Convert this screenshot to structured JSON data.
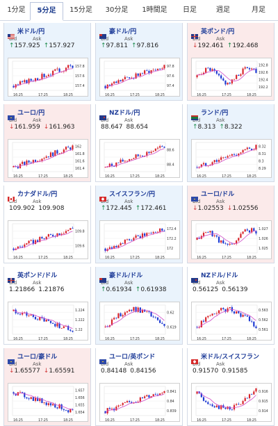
{
  "tabs": [
    {
      "label": "1分足",
      "active": false
    },
    {
      "label": "5分足",
      "active": true
    },
    {
      "label": "15分足",
      "active": false
    },
    {
      "label": "30分足",
      "active": false
    },
    {
      "label": "1時間足",
      "active": false
    },
    {
      "label": "日足",
      "active": false
    },
    {
      "label": "週足",
      "active": false
    },
    {
      "label": "月足",
      "active": false
    }
  ],
  "bid_label": "Bid",
  "ask_label": "Ask",
  "x_ticks": [
    "16:25",
    "17:25",
    "18:25"
  ],
  "colors": {
    "up_bg": "#eaf3fc",
    "down_bg": "#fbeaea",
    "bull": "#d8252c",
    "bear": "#1f3bd3",
    "ma": "#d04bc7"
  },
  "pairs": [
    {
      "name": "米ドル/円",
      "flag": "us",
      "trend": "up",
      "bid": "157.925",
      "ask": "157.927",
      "bid_dir": "up",
      "ask_dir": "up",
      "y_ticks": [
        "157.8",
        "157.6",
        "157.4"
      ],
      "shape": "up"
    },
    {
      "name": "豪ドル/円",
      "flag": "au",
      "trend": "up",
      "bid": "97.811",
      "ask": "97.816",
      "bid_dir": "up",
      "ask_dir": "up",
      "y_ticks": [
        "97.8",
        "97.6",
        "97.4"
      ],
      "shape": "up"
    },
    {
      "name": "英ポンド/円",
      "flag": "uk",
      "trend": "down",
      "bid": "192.461",
      "ask": "192.468",
      "bid_dir": "down",
      "ask_dir": "up",
      "y_ticks": [
        "192.8",
        "192.6",
        "192.4",
        "192.2"
      ],
      "shape": "wave"
    },
    {
      "name": "ユーロ/円",
      "flag": "eu",
      "trend": "down",
      "bid": "161.959",
      "ask": "161.963",
      "bid_dir": "down",
      "ask_dir": "down",
      "y_ticks": [
        "162",
        "161.8",
        "161.6",
        "161.4"
      ],
      "shape": "up"
    },
    {
      "name": "NZドル/円",
      "flag": "nz",
      "trend": "flat",
      "bid": "88.647",
      "ask": "88.654",
      "bid_dir": "none",
      "ask_dir": "none",
      "y_ticks": [
        "88.6",
        "88.4"
      ],
      "shape": "up"
    },
    {
      "name": "ランド/円",
      "flag": "za",
      "trend": "up",
      "bid": "8.313",
      "ask": "8.322",
      "bid_dir": "up",
      "ask_dir": "up",
      "y_ticks": [
        "8.32",
        "8.31",
        "8.3",
        "8.29"
      ],
      "shape": "up"
    },
    {
      "name": "カナダドル/円",
      "flag": "ca",
      "trend": "flat",
      "bid": "109.902",
      "ask": "109.908",
      "bid_dir": "none",
      "ask_dir": "none",
      "y_ticks": [
        "109.8",
        "109.6"
      ],
      "shape": "up"
    },
    {
      "name": "スイスフラン/円",
      "flag": "ch",
      "trend": "up",
      "bid": "172.445",
      "ask": "172.461",
      "bid_dir": "up",
      "ask_dir": "up",
      "y_ticks": [
        "172.4",
        "172.2",
        "172"
      ],
      "shape": "up"
    },
    {
      "name": "ユーロ/ドル",
      "flag": "eu",
      "trend": "down",
      "bid": "1.02553",
      "ask": "1.02556",
      "bid_dir": "down",
      "ask_dir": "down",
      "y_ticks": [
        "1.027",
        "1.026",
        "1.025"
      ],
      "shape": "wave"
    },
    {
      "name": "英ポンド/ドル",
      "flag": "uk",
      "trend": "flat",
      "bid": "1.21866",
      "ask": "1.21876",
      "bid_dir": "none",
      "ask_dir": "none",
      "y_ticks": [
        "1.224",
        "1.222",
        "1.22"
      ],
      "shape": "down"
    },
    {
      "name": "豪ドル/ドル",
      "flag": "au",
      "trend": "up",
      "bid": "0.61934",
      "ask": "0.61938",
      "bid_dir": "up",
      "ask_dir": "up",
      "y_ticks": [
        "0.62",
        "0.619"
      ],
      "shape": "hump"
    },
    {
      "name": "NZドル/ドル",
      "flag": "nz",
      "trend": "flat",
      "bid": "0.56125",
      "ask": "0.56139",
      "bid_dir": "none",
      "ask_dir": "none",
      "y_ticks": [
        "0.563",
        "0.562",
        "0.561"
      ],
      "shape": "hump"
    },
    {
      "name": "ユーロ/豪ドル",
      "flag": "eu",
      "trend": "down",
      "bid": "1.65577",
      "ask": "1.65591",
      "bid_dir": "down",
      "ask_dir": "down",
      "y_ticks": [
        "1.657",
        "1.656",
        "1.655",
        "1.654"
      ],
      "shape": "down"
    },
    {
      "name": "ユーロ/英ポンド",
      "flag": "eu",
      "trend": "flat",
      "bid": "0.84148",
      "ask": "0.84156",
      "bid_dir": "none",
      "ask_dir": "none",
      "y_ticks": [
        "0.841",
        "0.84",
        "0.839"
      ],
      "shape": "up"
    },
    {
      "name": "米ドル/スイスフラン",
      "flag": "ch",
      "trend": "flat",
      "bid": "0.91570",
      "ask": "0.91585",
      "bid_dir": "none",
      "ask_dir": "none",
      "y_ticks": [
        "0.916",
        "0.915",
        "0.914"
      ],
      "shape": "vee"
    }
  ]
}
